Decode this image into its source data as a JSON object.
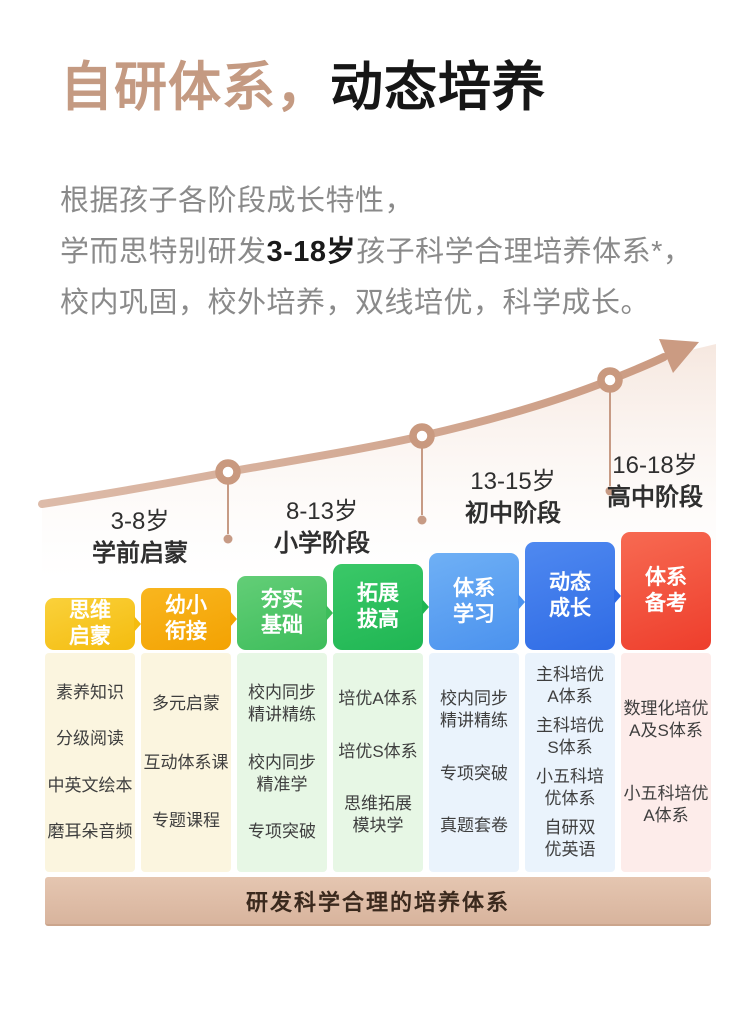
{
  "title": {
    "highlight": "自研体系，",
    "rest": "动态培养"
  },
  "intro": {
    "line1": "根据孩子各阶段成长特性，",
    "line2_prefix": "学而思特别研发",
    "line2_bold": "3-18岁",
    "line2_suffix": "孩子科学合理培养体系*，",
    "line3": "校内巩固，校外培养，双线培优，科学成长。"
  },
  "stages": [
    {
      "age": "3-8岁",
      "name": "学前启蒙"
    },
    {
      "age": "8-13岁",
      "name": "小学阶段"
    },
    {
      "age": "13-15岁",
      "name": "初中阶段"
    },
    {
      "age": "16-18岁",
      "name": "高中阶段"
    }
  ],
  "columns": [
    {
      "header": "思维\n启蒙",
      "c1": "#FAD13B",
      "c2": "#F4BC0F",
      "bg": "#FBF5DF",
      "items": [
        "素养知识",
        "分级阅读",
        "中英文绘本",
        "磨耳朵音频"
      ]
    },
    {
      "header": "幼小\n衔接",
      "c1": "#F9B61F",
      "c2": "#F3A202",
      "bg": "#FBF5DF",
      "items": [
        "多元启蒙",
        "互动体系课",
        "专题课程"
      ]
    },
    {
      "header": "夯实\n基础",
      "c1": "#63CE77",
      "c2": "#3DBD5B",
      "bg": "#E7F7E5",
      "items": [
        "校内同步\n精讲精练",
        "校内同步\n精准学",
        "专项突破"
      ]
    },
    {
      "header": "拓展\n拔高",
      "c1": "#3BC868",
      "c2": "#1FB653",
      "bg": "#E7F7E5",
      "items": [
        "培优A体系",
        "培优S体系",
        "思维拓展\n模块学"
      ]
    },
    {
      "header": "体系\n学习",
      "c1": "#6FB0F5",
      "c2": "#4B92EE",
      "bg": "#EAF3FC",
      "items": [
        "校内同步\n精讲精练",
        "专项突破",
        "真题套卷"
      ]
    },
    {
      "header": "动态\n成长",
      "c1": "#4F89F0",
      "c2": "#2F6BE5",
      "bg": "#EAF3FC",
      "items": [
        "主科培优\nA体系",
        "主科培优\nS体系",
        "小五科培\n优体系",
        "自研双\n优英语"
      ]
    },
    {
      "header": "体系\n备考",
      "c1": "#F76A52",
      "c2": "#EE3E2C",
      "bg": "#FDECEA",
      "items": [
        "数理化培优\nA及S体系",
        "小五科培优\nA体系"
      ]
    }
  ],
  "footer": {
    "label": "研发科学合理的培养体系"
  },
  "colors": {
    "title_accent": "#C49A82",
    "title_dark": "#161616",
    "body_text": "#8A8A8A",
    "curve": "#CDA089",
    "marker_ring": "#C9997F",
    "footer_bg": "#E0BFA9",
    "footer_text": "#3A291D"
  }
}
